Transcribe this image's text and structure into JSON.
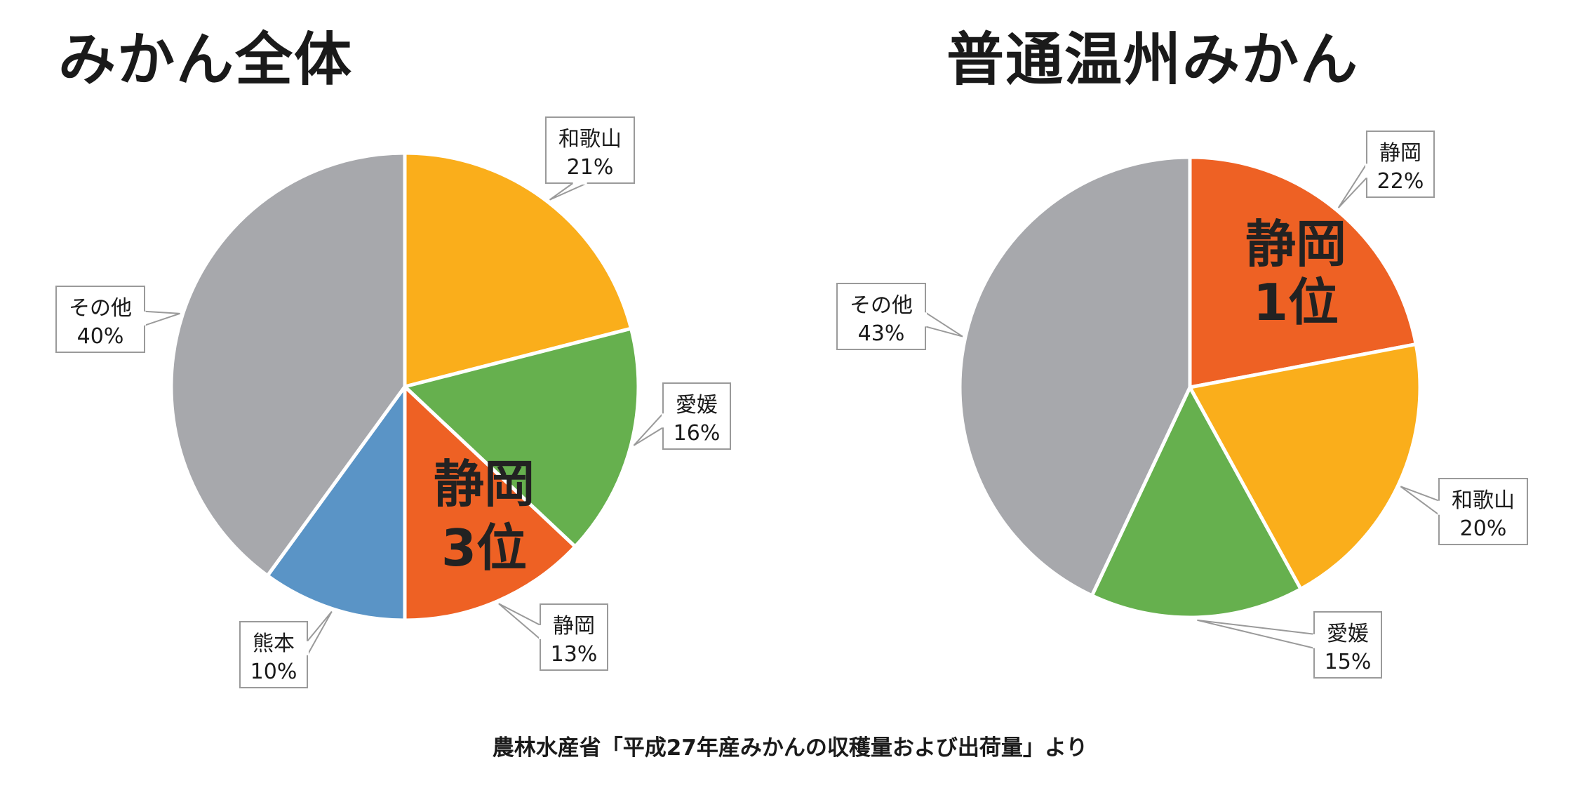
{
  "chart_data": [
    {
      "type": "pie",
      "title": "みかん全体",
      "slices": [
        {
          "label": "和歌山",
          "value": 21,
          "value_label": "21%",
          "color": "#FAAE1B"
        },
        {
          "label": "愛媛",
          "value": 16,
          "value_label": "16%",
          "color": "#66B04E"
        },
        {
          "label": "静岡",
          "value": 13,
          "value_label": "13%",
          "color": "#EE6124"
        },
        {
          "label": "熊本",
          "value": 10,
          "value_label": "10%",
          "color": "#5A94C6"
        },
        {
          "label": "その他",
          "value": 40,
          "value_label": "40%",
          "color": "#A7A8AC"
        }
      ],
      "highlight": {
        "line1": "静岡",
        "line2": "3位",
        "slice": "静岡"
      }
    },
    {
      "type": "pie",
      "title": "普通温州みかん",
      "slices": [
        {
          "label": "静岡",
          "value": 22,
          "value_label": "22%",
          "color": "#EE6124"
        },
        {
          "label": "和歌山",
          "value": 20,
          "value_label": "20%",
          "color": "#FAAE1B"
        },
        {
          "label": "愛媛",
          "value": 15,
          "value_label": "15%",
          "color": "#66B04E"
        },
        {
          "label": "その他",
          "value": 43,
          "value_label": "43%",
          "color": "#A7A8AC"
        }
      ],
      "highlight": {
        "line1": "静岡",
        "line2": "1位",
        "slice": "静岡"
      }
    }
  ],
  "source_note": "農林水産省「平成27年産みかんの収穫量および出荷量」より"
}
